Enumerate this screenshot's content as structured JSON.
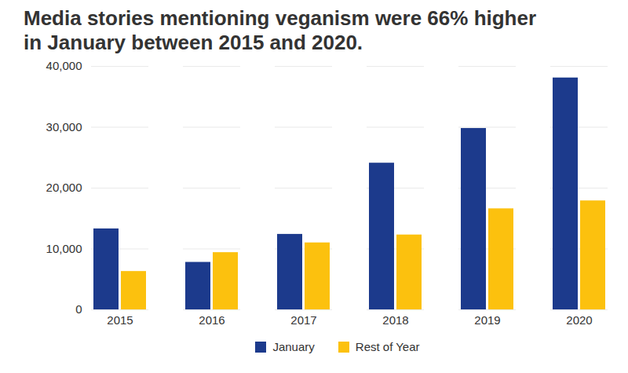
{
  "chart_data": {
    "type": "bar",
    "title": "Media stories mentioning veganism were 66% higher in January between 2015 and 2020.",
    "categories": [
      "2015",
      "2016",
      "2017",
      "2018",
      "2019",
      "2020"
    ],
    "series": [
      {
        "name": "January",
        "color": "#1c3a8c",
        "values": [
          13300,
          7800,
          12400,
          24100,
          29800,
          38100
        ]
      },
      {
        "name": "Rest of Year",
        "color": "#fcc10e",
        "values": [
          6300,
          9400,
          11000,
          12300,
          16600,
          17900
        ]
      }
    ],
    "ylim": [
      0,
      40000
    ],
    "yticks": [
      0,
      {
        "value": 10000,
        "label": "10,000"
      },
      {
        "value": 20000,
        "label": "20,000"
      },
      {
        "value": 30000,
        "label": "30,000"
      },
      {
        "value": 40000,
        "label": "40,000"
      }
    ],
    "grid": true,
    "legend": "bottom"
  }
}
